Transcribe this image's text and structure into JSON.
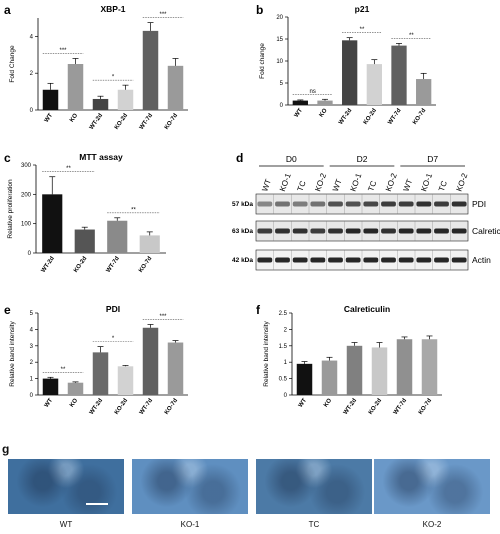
{
  "panels": {
    "a": {
      "letter": "a",
      "title": "XBP-1",
      "ylabel": "Fold Change"
    },
    "b": {
      "letter": "b",
      "title": "p21",
      "ylabel": "Fold change"
    },
    "c": {
      "letter": "c",
      "title": "MTT assay",
      "ylabel": "Relative proliferation"
    },
    "d": {
      "letter": "d"
    },
    "e": {
      "letter": "e",
      "title": "PDI",
      "ylabel": "Relative band intensity"
    },
    "f": {
      "letter": "f",
      "title": "Calreticulin",
      "ylabel": "Relative band intensity"
    },
    "g": {
      "letter": "g"
    }
  },
  "chart_data": [
    {
      "id": "a",
      "type": "bar",
      "title": "XBP-1",
      "ylabel": "Fold Change",
      "categories": [
        "WT",
        "KO",
        "WT-2d",
        "KO-2d",
        "WT-7d",
        "KO-7d"
      ],
      "values": [
        1.1,
        2.5,
        0.6,
        1.1,
        4.3,
        2.4
      ],
      "errors": [
        0.35,
        0.3,
        0.15,
        0.25,
        0.45,
        0.4
      ],
      "ylim": [
        0,
        5
      ],
      "yticks": [
        0,
        2,
        4
      ],
      "colors": [
        "#111111",
        "#9a9a9a",
        "#444444",
        "#d2d2d2",
        "#606060",
        "#9a9a9a"
      ],
      "significance": [
        {
          "from": 0,
          "to": 1,
          "label": "***"
        },
        {
          "from": 2,
          "to": 3,
          "label": "*"
        },
        {
          "from": 4,
          "to": 5,
          "label": "***"
        }
      ]
    },
    {
      "id": "b",
      "type": "bar",
      "title": "p21",
      "ylabel": "Fold change",
      "categories": [
        "WT",
        "KO",
        "WT-2d",
        "KO-2d",
        "WT-7d",
        "KO-7d"
      ],
      "values": [
        1.0,
        1.0,
        14.7,
        9.3,
        13.5,
        5.9
      ],
      "errors": [
        0.15,
        0.3,
        0.6,
        1.0,
        0.5,
        1.3
      ],
      "ylim": [
        0,
        20
      ],
      "yticks": [
        0,
        5,
        10,
        15,
        20
      ],
      "colors": [
        "#111111",
        "#9a9a9a",
        "#444444",
        "#d2d2d2",
        "#606060",
        "#9a9a9a"
      ],
      "significance": [
        {
          "from": 0,
          "to": 1,
          "label": "ns"
        },
        {
          "from": 2,
          "to": 3,
          "label": "**"
        },
        {
          "from": 4,
          "to": 5,
          "label": "**"
        }
      ]
    },
    {
      "id": "c",
      "type": "bar",
      "title": "MTT assay",
      "ylabel": "Relative proliferation",
      "categories": [
        "WT-2d",
        "KO-2d",
        "WT-7d",
        "KO-7d"
      ],
      "values": [
        200,
        80,
        110,
        60
      ],
      "errors": [
        60,
        8,
        10,
        12
      ],
      "ylim": [
        0,
        300
      ],
      "yticks": [
        0,
        100,
        200,
        300
      ],
      "colors": [
        "#111111",
        "#555555",
        "#8a8a8a",
        "#c8c8c8"
      ],
      "significance": [
        {
          "from": 0,
          "to": 1,
          "label": "**"
        },
        {
          "from": 2,
          "to": 3,
          "label": "**"
        }
      ]
    },
    {
      "id": "e",
      "type": "bar",
      "title": "PDI",
      "ylabel": "Relative band intensity",
      "categories": [
        "WT",
        "KO",
        "WT-2d",
        "KO-2d",
        "WT-7d",
        "KO-7d"
      ],
      "values": [
        1.0,
        0.75,
        2.6,
        1.75,
        4.1,
        3.2
      ],
      "errors": [
        0.08,
        0.05,
        0.35,
        0.05,
        0.2,
        0.12
      ],
      "ylim": [
        0,
        5
      ],
      "yticks": [
        0,
        1,
        2,
        3,
        4,
        5
      ],
      "colors": [
        "#111111",
        "#9a9a9a",
        "#6a6a6a",
        "#d2d2d2",
        "#606060",
        "#9a9a9a"
      ],
      "significance": [
        {
          "from": 0,
          "to": 1,
          "label": "**"
        },
        {
          "from": 2,
          "to": 3,
          "label": "*"
        },
        {
          "from": 4,
          "to": 5,
          "label": "***"
        }
      ]
    },
    {
      "id": "f",
      "type": "bar",
      "title": "Calreticulin",
      "ylabel": "Relative band intensity",
      "categories": [
        "WT",
        "KO",
        "WT-2d",
        "KO-2d",
        "WT-7d",
        "KO-7d"
      ],
      "values": [
        0.95,
        1.05,
        1.5,
        1.45,
        1.7,
        1.7
      ],
      "errors": [
        0.07,
        0.1,
        0.1,
        0.15,
        0.07,
        0.1
      ],
      "ylim": [
        0,
        2.5
      ],
      "yticks": [
        0.0,
        0.5,
        1.0,
        1.5,
        2.0,
        2.5
      ],
      "colors": [
        "#111111",
        "#9a9a9a",
        "#808080",
        "#c8c8c8",
        "#909090",
        "#a8a8a8"
      ],
      "significance": []
    }
  ],
  "blot": {
    "groups": [
      "D0",
      "D2",
      "D7"
    ],
    "lanes": [
      "WT",
      "KO-1",
      "TC",
      "KO-2",
      "WT",
      "KO-1",
      "TC",
      "KO-2",
      "WT",
      "KO-1",
      "TC",
      "KO-2"
    ],
    "bands": [
      {
        "kda": "57 kDa",
        "name": "PDI"
      },
      {
        "kda": "63 kDa",
        "name": "Calreticulin"
      },
      {
        "kda": "42 kDa",
        "name": "Actin"
      }
    ]
  },
  "micrographs": [
    {
      "caption": "WT",
      "color": "#3f6f9e"
    },
    {
      "caption": "KO-1",
      "color": "#5f8fc0"
    },
    {
      "caption": "TC",
      "color": "#4c7aa6"
    },
    {
      "caption": "KO-2",
      "color": "#6a98c8"
    }
  ]
}
